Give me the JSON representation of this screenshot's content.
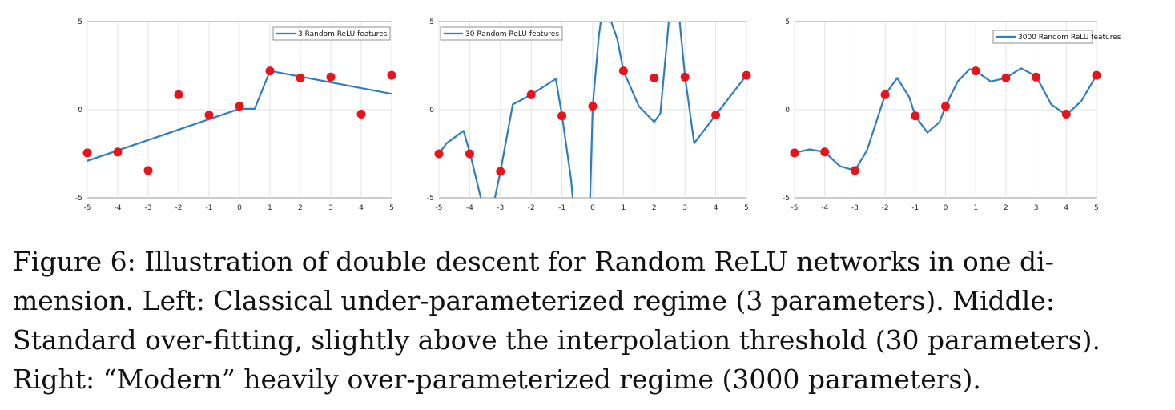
{
  "chart_data": [
    {
      "type": "line",
      "legend": "3 Random ReLU features",
      "legend_placement": "top-right",
      "xlim": [
        -5,
        5
      ],
      "ylim": [
        -5,
        5
      ],
      "x_ticks": [
        "-5",
        "-4",
        "-3",
        "-2",
        "-1",
        "0",
        "1",
        "2",
        "3",
        "4",
        "5"
      ],
      "y_ticks": [
        "5",
        "0",
        "-5"
      ],
      "grid": true,
      "colors": {
        "line": "#2e7ebf",
        "points": "#e8141c"
      },
      "series": [
        {
          "name": "3 Random ReLU features",
          "x": [
            -5,
            0,
            0.5,
            1,
            5
          ],
          "y": [
            -2.9,
            0.05,
            0.05,
            2.2,
            0.9
          ]
        }
      ],
      "points": {
        "x": [
          -5,
          -4,
          -3,
          -2,
          -1,
          0,
          1,
          2,
          3,
          4,
          5
        ],
        "y": [
          -2.45,
          -2.4,
          -3.45,
          0.85,
          -0.3,
          0.2,
          2.2,
          1.8,
          1.85,
          -0.25,
          1.95
        ]
      }
    },
    {
      "type": "line",
      "legend": "30 Random ReLU features",
      "legend_placement": "top-left",
      "xlim": [
        -5,
        5
      ],
      "ylim": [
        -5,
        5
      ],
      "x_ticks": [
        "-5",
        "-4",
        "-3",
        "-2",
        "-1",
        "0",
        "1",
        "2",
        "3",
        "4",
        "5"
      ],
      "y_ticks": [
        "5",
        "0",
        "-5"
      ],
      "grid": true,
      "colors": {
        "line": "#2e7ebf",
        "points": "#e8141c"
      },
      "series": [
        {
          "name": "30 Random ReLU features",
          "x": [
            -5,
            -4.75,
            -4.2,
            -4,
            -3.5,
            -3.3,
            -3,
            -2.6,
            -2,
            -1.2,
            -1,
            -0.7,
            -0.5,
            -0.1,
            0,
            0.2,
            0.3,
            0.5,
            0.8,
            1,
            1.5,
            2,
            2.2,
            2.5,
            2.8,
            3,
            3.3,
            4,
            5
          ],
          "y": [
            -2.5,
            -1.9,
            -1.2,
            -2.4,
            -6,
            -6,
            -3.5,
            0.3,
            0.85,
            1.75,
            -0.3,
            -4,
            -8,
            -6,
            0.2,
            4.2,
            5.5,
            5.5,
            4,
            2.2,
            0.2,
            -0.7,
            -0.2,
            5.5,
            5.5,
            1.9,
            -1.9,
            -0.3,
            1.95
          ]
        }
      ],
      "points": {
        "x": [
          -5,
          -4,
          -3,
          -2,
          -1,
          0,
          1,
          2,
          3,
          4,
          5
        ],
        "y": [
          -2.5,
          -2.5,
          -3.5,
          0.85,
          -0.35,
          0.2,
          2.2,
          1.8,
          1.85,
          -0.3,
          1.95
        ]
      }
    },
    {
      "type": "line",
      "legend": "3000 Random ReLU features",
      "legend_placement": "top-right",
      "xlim": [
        -5,
        5
      ],
      "ylim": [
        -5,
        5
      ],
      "x_ticks": [
        "-5",
        "-4",
        "-3",
        "-2",
        "-1",
        "0",
        "1",
        "2",
        "3",
        "4",
        "5"
      ],
      "y_ticks": [
        "5",
        "0",
        "-5"
      ],
      "grid": true,
      "colors": {
        "line": "#2e7ebf",
        "points": "#e8141c"
      },
      "series": [
        {
          "name": "3000 Random ReLU features",
          "x": [
            -5,
            -4.5,
            -4,
            -3.5,
            -3,
            -2.6,
            -2,
            -1.6,
            -1.2,
            -1,
            -0.6,
            -0.2,
            0,
            0.4,
            0.8,
            1,
            1.5,
            2,
            2.5,
            3,
            3.5,
            4,
            4.5,
            5
          ],
          "y": [
            -2.45,
            -2.25,
            -2.4,
            -3.2,
            -3.45,
            -2.3,
            0.85,
            1.8,
            0.7,
            -0.35,
            -1.3,
            -0.7,
            0.2,
            1.6,
            2.3,
            2.2,
            1.6,
            1.8,
            2.35,
            1.9,
            0.3,
            -0.3,
            0.5,
            1.95
          ]
        }
      ],
      "points": {
        "x": [
          -5,
          -4,
          -3,
          -2,
          -1,
          0,
          1,
          2,
          3,
          4,
          5
        ],
        "y": [
          -2.45,
          -2.4,
          -3.45,
          0.85,
          -0.35,
          0.2,
          2.2,
          1.8,
          1.85,
          -0.25,
          1.95
        ]
      }
    }
  ],
  "caption": {
    "lines": [
      "Figure 6:  Illustration of double descent for Random ReLU networks in one di-",
      "mension.  Left:  Classical under-parameterized regime (3 parameters).  Middle:",
      "Standard over-fitting, slightly above the interpolation threshold (30 parameters).",
      "Right:  “Modern” heavily over-parameterized regime (3000 parameters)."
    ]
  }
}
